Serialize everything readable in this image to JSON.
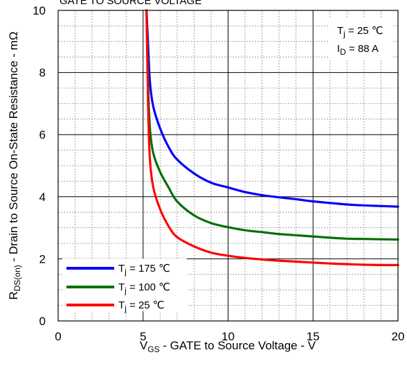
{
  "chart_data": {
    "type": "line",
    "title": "GATE TO SOURCE VOLTAGE",
    "xlabel": {
      "main": "V",
      "sub": "GS",
      "rest": " - GATE to Source Voltage - V"
    },
    "ylabel": {
      "main": "R",
      "sub": "DS(on)",
      "rest": " - Drain to Source On-State Resistance - mΩ"
    },
    "xlim": [
      0,
      20
    ],
    "ylim": [
      0,
      10
    ],
    "xticks": [
      "0",
      "5",
      "10",
      "15",
      "20"
    ],
    "yticks": [
      "0",
      "2",
      "4",
      "6",
      "8",
      "10"
    ],
    "grid": true,
    "legend_position": "bottom-left",
    "annotations": [
      {
        "main": "T",
        "sub": "j",
        "rest": " = 25 ℃"
      },
      {
        "main": "I",
        "sub": "D",
        "rest": " = 88 A"
      }
    ],
    "series": [
      {
        "name": {
          "main": "T",
          "sub": "j",
          "rest": " = 175 ℃"
        },
        "color": "#0000ff",
        "points": [
          [
            5.2,
            10
          ],
          [
            5.3,
            8.8
          ],
          [
            5.4,
            7.7
          ],
          [
            5.6,
            6.9
          ],
          [
            6.0,
            6.2
          ],
          [
            6.5,
            5.6
          ],
          [
            7.0,
            5.2
          ],
          [
            8.0,
            4.75
          ],
          [
            9.0,
            4.45
          ],
          [
            10.0,
            4.3
          ],
          [
            11.0,
            4.15
          ],
          [
            12.0,
            4.05
          ],
          [
            13.0,
            3.98
          ],
          [
            14.0,
            3.92
          ],
          [
            15.0,
            3.85
          ],
          [
            16.0,
            3.8
          ],
          [
            17.0,
            3.75
          ],
          [
            18.0,
            3.72
          ],
          [
            19.0,
            3.7
          ],
          [
            20.0,
            3.68
          ]
        ]
      },
      {
        "name": {
          "main": "T",
          "sub": "j",
          "rest": " = 100 ℃"
        },
        "color": "#007000",
        "points": [
          [
            5.2,
            10
          ],
          [
            5.3,
            7.5
          ],
          [
            5.4,
            6.2
          ],
          [
            5.6,
            5.4
          ],
          [
            6.0,
            4.8
          ],
          [
            6.5,
            4.3
          ],
          [
            7.0,
            3.85
          ],
          [
            8.0,
            3.4
          ],
          [
            9.0,
            3.15
          ],
          [
            10.0,
            3.02
          ],
          [
            11.0,
            2.92
          ],
          [
            12.0,
            2.86
          ],
          [
            13.0,
            2.8
          ],
          [
            14.0,
            2.76
          ],
          [
            15.0,
            2.72
          ],
          [
            16.0,
            2.68
          ],
          [
            17.0,
            2.65
          ],
          [
            18.0,
            2.64
          ],
          [
            19.0,
            2.63
          ],
          [
            20.0,
            2.62
          ]
        ]
      },
      {
        "name": {
          "main": "T",
          "sub": "j",
          "rest": " = 25 ℃"
        },
        "color": "#ff0000",
        "points": [
          [
            5.2,
            10
          ],
          [
            5.3,
            6.8
          ],
          [
            5.4,
            5.2
          ],
          [
            5.6,
            4.3
          ],
          [
            6.0,
            3.6
          ],
          [
            6.5,
            3.05
          ],
          [
            7.0,
            2.7
          ],
          [
            8.0,
            2.4
          ],
          [
            9.0,
            2.2
          ],
          [
            10.0,
            2.1
          ],
          [
            11.0,
            2.03
          ],
          [
            12.0,
            1.98
          ],
          [
            13.0,
            1.94
          ],
          [
            14.0,
            1.91
          ],
          [
            15.0,
            1.88
          ],
          [
            16.0,
            1.85
          ],
          [
            17.0,
            1.83
          ],
          [
            18.0,
            1.81
          ],
          [
            19.0,
            1.8
          ],
          [
            20.0,
            1.8
          ]
        ]
      }
    ]
  }
}
